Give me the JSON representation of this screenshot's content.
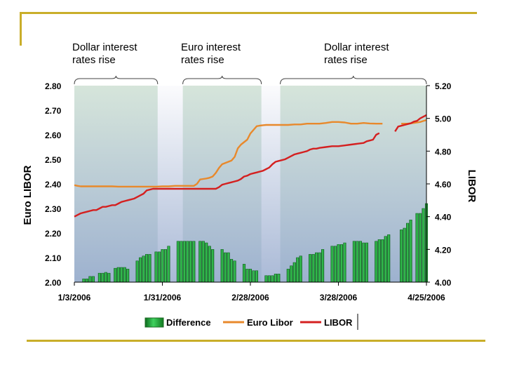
{
  "annotations": [
    {
      "label": "Dollar interest\nrates rise"
    },
    {
      "label": "Euro interest\nrates rise"
    },
    {
      "label": "Dollar interest\nrates rise"
    }
  ],
  "colors": {
    "accent": "#c9ae2a",
    "difference": "#22b14c",
    "euro_libor": "#e8892c",
    "libor": "#d42020"
  },
  "chart_data": {
    "type": "bar+line",
    "title": "",
    "y_left_label": "Euro LIBOR",
    "y_right_label": "LIBOR",
    "y_left_range": [
      2.0,
      2.8
    ],
    "y_right_range": [
      4.0,
      5.2
    ],
    "y_left_ticks": [
      "2.00",
      "2.10",
      "2.20",
      "2.30",
      "2.40",
      "2.50",
      "2.60",
      "2.70",
      "2.80"
    ],
    "y_right_ticks": [
      "4.00",
      "4.20",
      "4.40",
      "4.60",
      "4.80",
      "5.00",
      "5.20"
    ],
    "x_tick_labels": [
      "1/3/2006",
      "1/31/2006",
      "2/28/2006",
      "3/28/2006",
      "4/25/2006"
    ],
    "x_range_days": [
      0,
      112
    ],
    "x_tick_days": [
      0,
      28,
      56,
      84,
      112
    ],
    "shaded_periods_days": [
      [
        0,
        26.5
      ],
      [
        34.5,
        59.5
      ],
      [
        65.5,
        113
      ]
    ],
    "legend": [
      "Difference",
      "Euro Libor",
      "LIBOR"
    ],
    "series": [
      {
        "name": "Difference",
        "type": "bar",
        "axis": "right",
        "days": [
          3,
          4,
          5,
          6,
          8,
          9,
          10,
          11,
          13,
          14,
          15,
          16,
          17,
          20,
          21,
          22,
          23,
          24,
          26,
          27,
          28,
          29,
          30,
          33,
          34,
          35,
          36,
          37,
          38,
          40,
          41,
          42,
          43,
          44,
          47,
          48,
          49,
          50,
          51,
          54,
          55,
          56,
          57,
          58,
          61,
          62,
          63,
          64,
          65,
          68,
          69,
          70,
          71,
          72,
          75,
          76,
          77,
          78,
          79,
          82,
          83,
          84,
          85,
          86,
          89,
          90,
          91,
          92,
          93,
          96,
          97,
          98,
          99,
          100,
          104,
          105,
          106,
          107,
          109,
          110,
          111,
          112
        ],
        "values": [
          4.02,
          4.02,
          4.035,
          4.035,
          4.055,
          4.055,
          4.06,
          4.055,
          4.085,
          4.09,
          4.09,
          4.09,
          4.08,
          4.13,
          4.15,
          4.16,
          4.17,
          4.17,
          4.185,
          4.185,
          4.2,
          4.2,
          4.22,
          4.25,
          4.25,
          4.25,
          4.25,
          4.25,
          4.25,
          4.25,
          4.25,
          4.24,
          4.22,
          4.2,
          4.2,
          4.18,
          4.18,
          4.14,
          4.13,
          4.11,
          4.08,
          4.08,
          4.07,
          4.07,
          4.04,
          4.04,
          4.04,
          4.05,
          4.05,
          4.08,
          4.1,
          4.12,
          4.15,
          4.16,
          4.17,
          4.17,
          4.18,
          4.18,
          4.2,
          4.22,
          4.22,
          4.23,
          4.23,
          4.24,
          4.25,
          4.25,
          4.25,
          4.24,
          4.24,
          4.25,
          4.26,
          4.26,
          4.28,
          4.29,
          4.32,
          4.33,
          4.36,
          4.38,
          4.42,
          4.42,
          4.45,
          4.48
        ]
      },
      {
        "name": "Euro Libor",
        "type": "line",
        "axis": "left",
        "days": [
          0,
          1,
          2,
          3,
          4,
          5,
          6,
          8,
          10,
          12,
          14,
          16,
          18,
          20,
          22,
          24,
          26,
          28,
          30,
          32,
          34,
          36,
          38,
          39,
          40,
          41,
          42,
          43,
          44,
          45,
          46,
          47,
          48,
          49,
          50,
          51,
          52,
          53,
          54,
          55,
          56,
          57,
          58,
          59,
          60,
          61,
          62,
          64,
          66,
          68,
          70,
          72,
          74,
          76,
          78,
          80,
          82,
          84,
          86,
          88,
          90,
          92,
          94,
          96,
          98,
          100,
          102,
          104,
          106,
          108,
          109,
          110,
          111,
          112
        ],
        "values": [
          2.395,
          2.392,
          2.39,
          2.39,
          2.39,
          2.39,
          2.39,
          2.39,
          2.39,
          2.39,
          2.389,
          2.389,
          2.389,
          2.389,
          2.389,
          2.389,
          2.389,
          2.39,
          2.39,
          2.392,
          2.392,
          2.392,
          2.392,
          2.4,
          2.418,
          2.42,
          2.422,
          2.425,
          2.43,
          2.445,
          2.465,
          2.48,
          2.485,
          2.49,
          2.495,
          2.51,
          2.545,
          2.56,
          2.57,
          2.58,
          2.605,
          2.62,
          2.635,
          2.637,
          2.639,
          2.64,
          2.64,
          2.64,
          2.64,
          2.64,
          2.642,
          2.642,
          2.645,
          2.645,
          2.645,
          2.648,
          2.652,
          2.652,
          2.65,
          2.645,
          2.645,
          2.648,
          2.646,
          2.645,
          2.645,
          null,
          null,
          2.645,
          2.645,
          2.648,
          2.65,
          2.652,
          2.656,
          2.66
        ]
      },
      {
        "name": "LIBOR",
        "type": "line",
        "axis": "right",
        "days": [
          0,
          1,
          2,
          3,
          4,
          5,
          6,
          7,
          8,
          9,
          10,
          11,
          12,
          13,
          14,
          15,
          16,
          17,
          18,
          19,
          20,
          21,
          22,
          23,
          25,
          30,
          35,
          40,
          45,
          46,
          47,
          48,
          49,
          50,
          51,
          52,
          53,
          54,
          55,
          56,
          57,
          58,
          59,
          60,
          61,
          62,
          63,
          64,
          65,
          66,
          67,
          68,
          69,
          70,
          71,
          72,
          73,
          74,
          75,
          76,
          77,
          78,
          80,
          82,
          84,
          86,
          88,
          90,
          92,
          93,
          94,
          95,
          96,
          97,
          98,
          99,
          100,
          101,
          102,
          103,
          104,
          105,
          106,
          107,
          108,
          109,
          110,
          111,
          112
        ],
        "values": [
          4.4,
          4.41,
          4.42,
          4.425,
          4.43,
          4.435,
          4.44,
          4.44,
          4.45,
          4.46,
          4.46,
          4.465,
          4.47,
          4.47,
          4.48,
          4.49,
          4.495,
          4.5,
          4.505,
          4.51,
          4.52,
          4.53,
          4.54,
          4.56,
          4.57,
          4.57,
          4.57,
          4.57,
          4.57,
          4.58,
          4.595,
          4.6,
          4.605,
          4.61,
          4.615,
          4.62,
          4.63,
          4.645,
          4.65,
          4.66,
          4.665,
          4.67,
          4.675,
          4.68,
          4.69,
          4.7,
          4.72,
          4.735,
          4.74,
          4.745,
          4.75,
          4.76,
          4.77,
          4.78,
          4.785,
          4.79,
          4.795,
          4.8,
          4.81,
          4.815,
          4.815,
          4.82,
          4.825,
          4.83,
          4.83,
          4.835,
          4.84,
          4.845,
          4.85,
          4.86,
          4.865,
          4.87,
          4.9,
          4.91,
          null,
          null,
          null,
          null,
          4.92,
          4.95,
          4.955,
          4.96,
          4.965,
          4.97,
          4.98,
          4.985,
          5.0,
          5.01,
          5.02
        ]
      }
    ]
  }
}
